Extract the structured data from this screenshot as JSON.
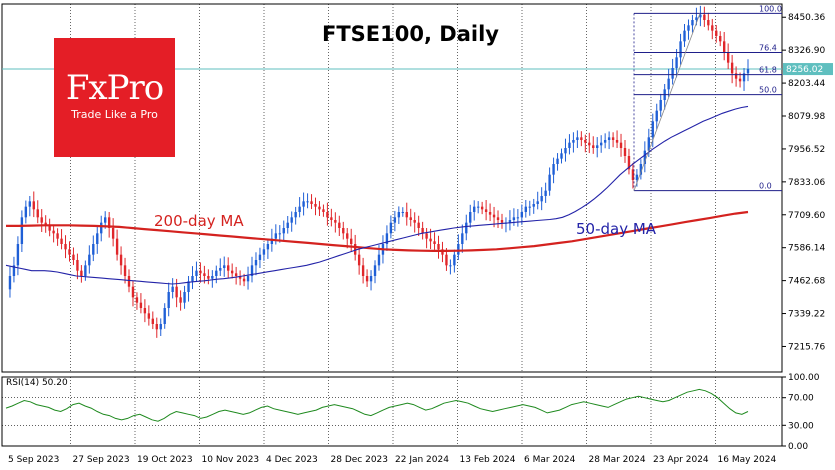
{
  "chart_data": {
    "type": "candlestick",
    "title": "FTSE100, Daily",
    "price_axis": {
      "ticks": [
        8450.36,
        8326.9,
        8203.44,
        8079.98,
        7956.52,
        7833.06,
        7709.6,
        7586.14,
        7462.68,
        7339.22,
        7215.76
      ],
      "current_price_label": "8256.02",
      "current_price": 8256.02,
      "range": [
        7120,
        8500
      ]
    },
    "x_axis": {
      "ticks": [
        "5 Sep 2023",
        "27 Sep 2023",
        "19 Oct 2023",
        "10 Nov 2023",
        "4 Dec 2023",
        "28 Dec 2023",
        "22 Jan 2024",
        "13 Feb 2024",
        "6 Mar 2024",
        "28 Mar 2024",
        "23 Apr 2024",
        "16 May 2024"
      ]
    },
    "close_series": [
      7430,
      7480,
      7520,
      7600,
      7700,
      7740,
      7760,
      7730,
      7700,
      7680,
      7670,
      7650,
      7640,
      7620,
      7600,
      7580,
      7560,
      7540,
      7500,
      7480,
      7520,
      7560,
      7600,
      7640,
      7680,
      7700,
      7660,
      7620,
      7560,
      7520,
      7480,
      7440,
      7400,
      7380,
      7360,
      7340,
      7320,
      7300,
      7280,
      7300,
      7360,
      7420,
      7440,
      7400,
      7380,
      7420,
      7460,
      7480,
      7500,
      7490,
      7480,
      7470,
      7480,
      7500,
      7510,
      7520,
      7500,
      7490,
      7480,
      7470,
      7460,
      7480,
      7520,
      7540,
      7560,
      7580,
      7600,
      7620,
      7640,
      7640,
      7660,
      7680,
      7700,
      7720,
      7740,
      7760,
      7760,
      7750,
      7740,
      7730,
      7720,
      7700,
      7690,
      7680,
      7660,
      7640,
      7620,
      7600,
      7560,
      7520,
      7480,
      7460,
      7480,
      7520,
      7560,
      7600,
      7640,
      7680,
      7700,
      7720,
      7720,
      7700,
      7690,
      7680,
      7660,
      7640,
      7620,
      7610,
      7600,
      7580,
      7560,
      7520,
      7520,
      7560,
      7600,
      7640,
      7680,
      7720,
      7740,
      7740,
      7730,
      7720,
      7710,
      7700,
      7690,
      7680,
      7680,
      7690,
      7700,
      7700,
      7720,
      7740,
      7740,
      7750,
      7760,
      7780,
      7800,
      7860,
      7900,
      7920,
      7940,
      7960,
      7980,
      7990,
      8000,
      7990,
      7980,
      7970,
      7960,
      7970,
      7980,
      7990,
      8000,
      7990,
      7980,
      7960,
      7930,
      7880,
      7840,
      7860,
      7900,
      7950,
      8000,
      8060,
      8100,
      8140,
      8180,
      8220,
      8260,
      8300,
      8360,
      8400,
      8420,
      8440,
      8450,
      8460,
      8440,
      8420,
      8400,
      8380,
      8360,
      8320,
      8280,
      8240,
      8220,
      8210,
      8240,
      8256
    ],
    "ma50_series": [
      7520,
      7515,
      7510,
      7505,
      7500,
      7500,
      7500,
      7498,
      7495,
      7490,
      7485,
      7480,
      7478,
      7476,
      7474,
      7472,
      7470,
      7468,
      7466,
      7464,
      7462,
      7460,
      7458,
      7456,
      7454,
      7452,
      7450,
      7452,
      7455,
      7458,
      7460,
      7462,
      7465,
      7468,
      7470,
      7473,
      7476,
      7480,
      7484,
      7488,
      7492,
      7496,
      7500,
      7504,
      7508,
      7512,
      7516,
      7520,
      7526,
      7532,
      7540,
      7548,
      7556,
      7564,
      7572,
      7580,
      7586,
      7592,
      7598,
      7604,
      7610,
      7616,
      7622,
      7628,
      7634,
      7640,
      7644,
      7648,
      7652,
      7656,
      7660,
      7663,
      7666,
      7668,
      7670,
      7672,
      7674,
      7676,
      7678,
      7680,
      7682,
      7684,
      7686,
      7688,
      7690,
      7692,
      7695,
      7700,
      7710,
      7722,
      7736,
      7752,
      7770,
      7790,
      7812,
      7836,
      7860,
      7880,
      7900,
      7918,
      7936,
      7954,
      7970,
      7986,
      8000,
      8012,
      8024,
      8036,
      8048,
      8060,
      8070,
      8080,
      8090,
      8098,
      8106,
      8112,
      8116
    ],
    "ma200_series": [
      7668,
      7668,
      7669,
      7670,
      7670,
      7670,
      7669,
      7668,
      7666,
      7664,
      7660,
      7656,
      7652,
      7648,
      7644,
      7640,
      7636,
      7632,
      7628,
      7624,
      7620,
      7616,
      7612,
      7608,
      7604,
      7600,
      7596,
      7592,
      7588,
      7584,
      7580,
      7578,
      7576,
      7575,
      7574,
      7574,
      7575,
      7576,
      7578,
      7580,
      7584,
      7588,
      7592,
      7598,
      7604,
      7610,
      7618,
      7626,
      7634,
      7642,
      7650,
      7658,
      7666,
      7674,
      7682,
      7690,
      7698,
      7706,
      7714,
      7720
    ],
    "rsi": {
      "label": "RSI(14) 50.20",
      "ticks": [
        100.0,
        70.0,
        30.0,
        0.0
      ],
      "range": [
        0,
        100
      ],
      "values": [
        55,
        58,
        62,
        66,
        64,
        60,
        58,
        56,
        52,
        50,
        54,
        60,
        62,
        58,
        55,
        50,
        46,
        44,
        40,
        38,
        40,
        44,
        46,
        42,
        38,
        36,
        40,
        46,
        50,
        48,
        46,
        44,
        40,
        42,
        46,
        50,
        52,
        50,
        48,
        46,
        48,
        52,
        56,
        58,
        54,
        52,
        50,
        48,
        46,
        48,
        50,
        52,
        56,
        58,
        60,
        58,
        56,
        54,
        50,
        46,
        44,
        48,
        52,
        56,
        58,
        60,
        62,
        60,
        56,
        52,
        54,
        58,
        62,
        64,
        66,
        64,
        62,
        58,
        54,
        52,
        50,
        52,
        54,
        56,
        58,
        60,
        58,
        56,
        52,
        48,
        50,
        52,
        56,
        60,
        62,
        64,
        62,
        60,
        58,
        56,
        60,
        64,
        68,
        70,
        72,
        70,
        68,
        66,
        64,
        66,
        70,
        74,
        78,
        80,
        82,
        80,
        76,
        70,
        62,
        54,
        48,
        46,
        50
      ]
    },
    "fibonacci": {
      "levels": [
        {
          "label": "100.0",
          "value": 8465
        },
        {
          "label": "76.4",
          "value": 8318
        },
        {
          "label": "61.8",
          "value": 8235
        },
        {
          "label": "50.0",
          "value": 8160
        },
        {
          "label": "0.0",
          "value": 7800
        }
      ]
    },
    "annotations": [
      {
        "text": "200-day MA",
        "color": "#d4221f"
      },
      {
        "text": "50-day MA",
        "color": "#2323a8"
      }
    ]
  },
  "logo": {
    "brand": "FxPro",
    "slogan": "Trade Like a Pro"
  },
  "colors": {
    "up": "#1f5fd6",
    "down": "#e0262a",
    "ma200": "#d4221f",
    "ma50": "#2323a8",
    "rsi": "#1f8a1f",
    "accent": "#5fbfbf"
  }
}
